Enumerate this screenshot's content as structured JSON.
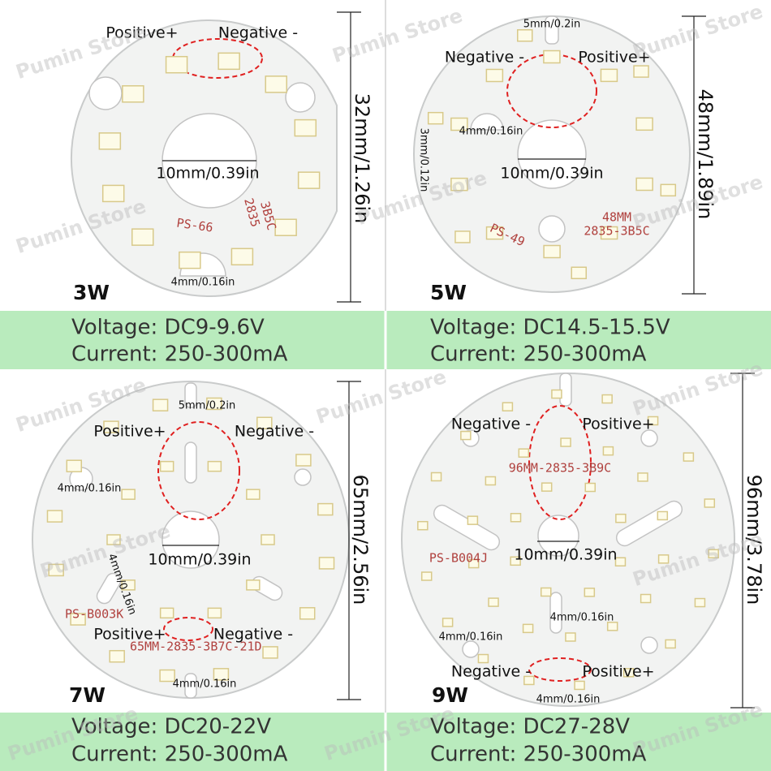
{
  "watermark": "Pumin Store",
  "panels": [
    {
      "wattage": "3W",
      "voltage": "Voltage: DC9-9.6V",
      "current": "Current: 250-300mA",
      "diameter": "32mm/1.26in",
      "labels": [
        "Positive+",
        "Negative -",
        "10mm/0.39in",
        "4mm/0.16in"
      ],
      "prints": [
        "PS-66",
        "2835",
        "3B5C"
      ]
    },
    {
      "wattage": "5W",
      "voltage": "Voltage: DC14.5-15.5V",
      "current": "Current: 250-300mA",
      "diameter": "48mm/1.89in",
      "labels": [
        "5mm/0.2in",
        "Negative -",
        "Positive+",
        "4mm/0.16in",
        "3mm/0.12in",
        "10mm/0.39in"
      ],
      "prints": [
        "PS-49",
        "48MM",
        "2835-3B5C"
      ]
    },
    {
      "wattage": "7W",
      "voltage": "Voltage: DC20-22V",
      "current": "Current: 250-300mA",
      "diameter": "65mm/2.56in",
      "labels": [
        "5mm/0.2in",
        "Positive+",
        "Negative -",
        "4mm/0.16in",
        "10mm/0.39in",
        "4mm/0.16in",
        "Positive+",
        "Negative -",
        "4mm/0.16in"
      ],
      "prints": [
        "PS-B003K",
        "65MM-2835-3B7C-21D"
      ]
    },
    {
      "wattage": "9W",
      "voltage": "Voltage: DC27-28V",
      "current": "Current: 250-300mA",
      "diameter": "96mm/3.78in",
      "labels": [
        "Negative -",
        "Positive+",
        "10mm/0.39in",
        "4mm/0.16in",
        "4mm/0.16in",
        "Negative -",
        "Positive+",
        "4mm/0.16in"
      ],
      "prints": [
        "96MM-2835-3B9C",
        "PS-B004J"
      ]
    }
  ]
}
